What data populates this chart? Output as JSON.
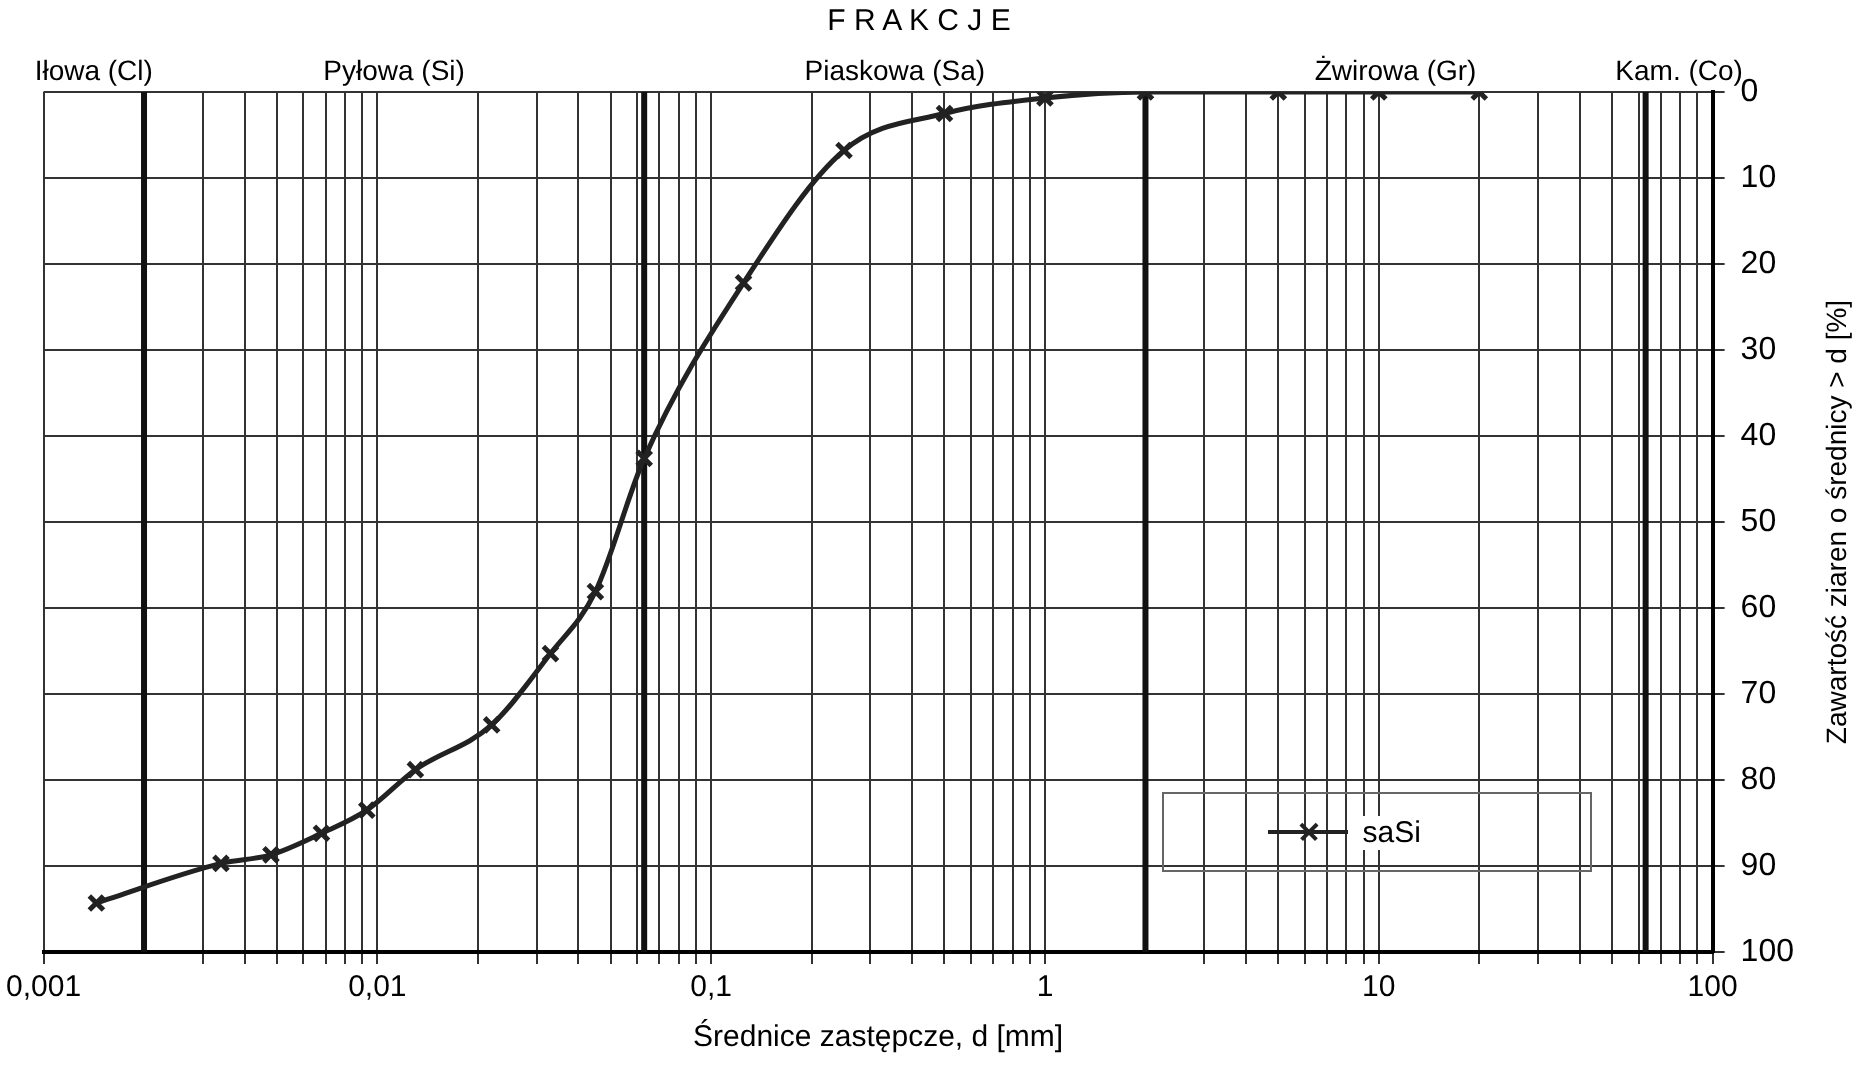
{
  "chart_data": {
    "type": "line",
    "title": "F R A K C J E",
    "xlabel": "Średnice zastępcze, d [mm]",
    "ylabel": "Zawartość ziaren o średnicy > d [%]",
    "x": [
      0.00144,
      0.0034,
      0.0048,
      0.0068,
      0.0093,
      0.013,
      0.022,
      0.033,
      0.045,
      0.063,
      0.125,
      0.25,
      0.5,
      1,
      2,
      5,
      10,
      20
    ],
    "series": [
      {
        "name": "saSi",
        "color": "#222222",
        "values": [
          94.3,
          89.7,
          88.7,
          86.2,
          83.5,
          78.8,
          73.6,
          65.3,
          58.1,
          42.6,
          22.2,
          6.8,
          2.5,
          0.7,
          0,
          0,
          0,
          0
        ]
      }
    ],
    "log": "x",
    "xlim": [
      0.001,
      100
    ],
    "ylim": [
      100,
      0
    ],
    "xticks": [
      {
        "value": 0.001,
        "label": "0,001"
      },
      {
        "value": 0.003,
        "label": null
      },
      {
        "value": 0.004,
        "label": null
      },
      {
        "value": 0.005,
        "label": null
      },
      {
        "value": 0.006,
        "label": null
      },
      {
        "value": 0.007,
        "label": null
      },
      {
        "value": 0.008,
        "label": null
      },
      {
        "value": 0.009,
        "label": null
      },
      {
        "value": 0.01,
        "label": "0,01"
      },
      {
        "value": 0.02,
        "label": null
      },
      {
        "value": 0.03,
        "label": null
      },
      {
        "value": 0.04,
        "label": null
      },
      {
        "value": 0.05,
        "label": null
      },
      {
        "value": 0.06,
        "label": null
      },
      {
        "value": 0.07,
        "label": null
      },
      {
        "value": 0.08,
        "label": null
      },
      {
        "value": 0.09,
        "label": null
      },
      {
        "value": 0.1,
        "label": "0,1"
      },
      {
        "value": 0.2,
        "label": null
      },
      {
        "value": 0.3,
        "label": null
      },
      {
        "value": 0.4,
        "label": null
      },
      {
        "value": 0.5,
        "label": null
      },
      {
        "value": 0.6,
        "label": null
      },
      {
        "value": 0.7,
        "label": null
      },
      {
        "value": 0.8,
        "label": null
      },
      {
        "value": 0.9,
        "label": null
      },
      1,
      {
        "value": 3,
        "label": null
      },
      {
        "value": 4,
        "label": null
      },
      {
        "value": 5,
        "label": null
      },
      {
        "value": 6,
        "label": null
      },
      {
        "value": 7,
        "label": null
      },
      {
        "value": 8,
        "label": null
      },
      {
        "value": 9,
        "label": null
      },
      10,
      {
        "value": 20,
        "label": null
      },
      {
        "value": 30,
        "label": null
      },
      {
        "value": 40,
        "label": null
      },
      {
        "value": 50,
        "label": null
      },
      {
        "value": 60,
        "label": null
      },
      {
        "value": 70,
        "label": null
      },
      {
        "value": 80,
        "label": null
      },
      {
        "value": 90,
        "label": null
      },
      100
    ],
    "yticks": [
      0,
      10,
      20,
      30,
      40,
      50,
      60,
      70,
      80,
      90,
      100
    ],
    "ref_lines": [
      {
        "axis": "x",
        "value": 0.002
      },
      {
        "axis": "x",
        "value": 0.063
      },
      {
        "axis": "x",
        "value": 2
      },
      {
        "axis": "x",
        "value": 63
      }
    ],
    "annotations": [
      "Iłowa (Cl)",
      "Pyłowa (Si)",
      "Piaskowa (Sa)",
      "Żwirowa (Gr)",
      "Kam. (Co)"
    ],
    "grid": true,
    "legend": "bottom right",
    "marker": "cross",
    "line_style": "solid"
  }
}
